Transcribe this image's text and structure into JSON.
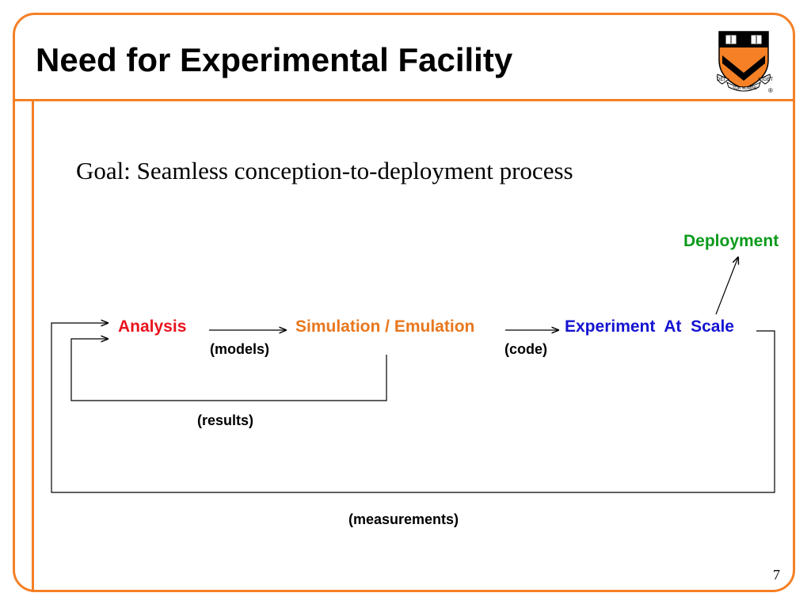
{
  "slide": {
    "title": "Need for Experimental Facility",
    "goal": "Goal: Seamless conception-to-deployment process",
    "page_number": "7"
  },
  "logo": {
    "motto_left": "DEI",
    "motto_center": "SUB NUMINE",
    "motto_right": "VIGET",
    "registered_mark": "®"
  },
  "diagram": {
    "nodes": {
      "analysis": "Analysis",
      "simulation": "Simulation / Emulation",
      "experiment": "Experiment  At  Scale",
      "deployment": "Deployment"
    },
    "edge_labels": {
      "models": "(models)",
      "code": "(code)",
      "results": "(results)",
      "measurements": "(measurements)"
    }
  },
  "colors": {
    "accent": "#F58025",
    "analysis": "#E8141E",
    "simulation": "#E8771E",
    "experiment": "#1414D2",
    "deployment": "#0A9A1A"
  }
}
